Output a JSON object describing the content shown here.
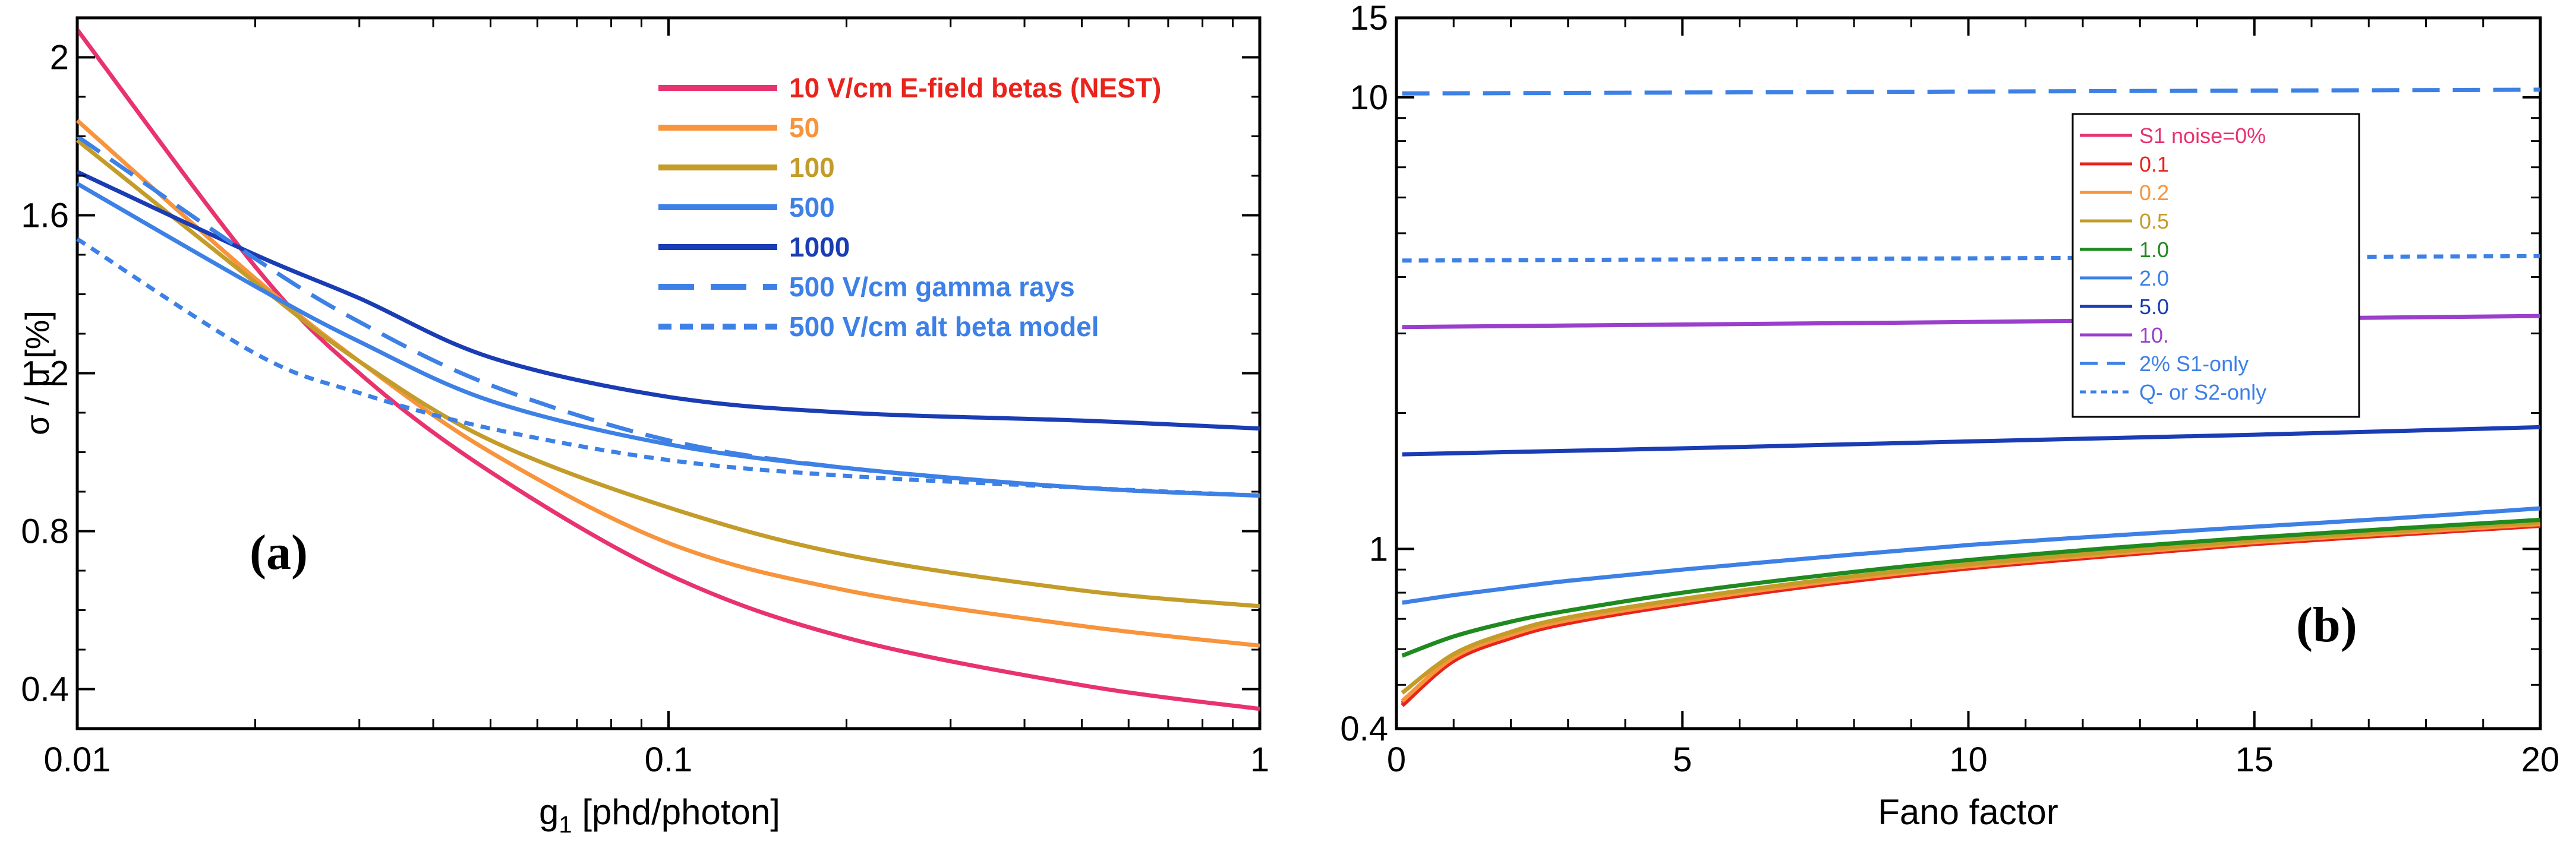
{
  "chart_data": [
    {
      "type": "line",
      "panel_label": "(a)",
      "xlabel_main": "g",
      "xlabel_sub": "1",
      "xlabel_rest": " [phd/photon]",
      "ylabel": "σ / μ [%]",
      "xscale": "log",
      "xlim": [
        0.01,
        1
      ],
      "ylim": [
        0.3,
        2.1
      ],
      "x_ticks": [
        {
          "value": 0.01,
          "label": "0.01"
        },
        {
          "value": 0.1,
          "label": "0.1"
        },
        {
          "value": 1,
          "label": "1"
        }
      ],
      "y_ticks": [
        {
          "value": 0.4,
          "label": "0.4"
        },
        {
          "value": 0.8,
          "label": "0.8"
        },
        {
          "value": 1.2,
          "label": "1.2"
        },
        {
          "value": 1.6,
          "label": "1.6"
        },
        {
          "value": 2.0,
          "label": "2"
        }
      ],
      "series": [
        {
          "name": "10 V/cm E-field betas (NEST)",
          "color": "#e8336e",
          "label_color": "#e8241c",
          "dash": "solid",
          "x": [
            0.01,
            0.02,
            0.03,
            0.05,
            0.1,
            0.2,
            0.5,
            1
          ],
          "y": [
            2.07,
            1.47,
            1.2,
            0.95,
            0.69,
            0.53,
            0.41,
            0.35
          ]
        },
        {
          "name": "50",
          "color": "#f7943c",
          "label_color": "#f7943c",
          "dash": "solid",
          "x": [
            0.01,
            0.02,
            0.03,
            0.05,
            0.1,
            0.2,
            0.5,
            1
          ],
          "y": [
            1.84,
            1.44,
            1.23,
            1.0,
            0.77,
            0.65,
            0.56,
            0.51
          ]
        },
        {
          "name": "100",
          "color": "#c39c2a",
          "label_color": "#c39c2a",
          "dash": "solid",
          "x": [
            0.01,
            0.02,
            0.03,
            0.05,
            0.1,
            0.2,
            0.5,
            1
          ],
          "y": [
            1.79,
            1.43,
            1.23,
            1.03,
            0.86,
            0.74,
            0.65,
            0.61
          ]
        },
        {
          "name": "500",
          "color": "#3d80e6",
          "label_color": "#3d80e6",
          "dash": "solid",
          "x": [
            0.01,
            0.02,
            0.03,
            0.05,
            0.1,
            0.2,
            0.5,
            1
          ],
          "y": [
            1.68,
            1.42,
            1.28,
            1.13,
            1.02,
            0.96,
            0.91,
            0.89
          ]
        },
        {
          "name": "1000",
          "color": "#1a3cb4",
          "label_color": "#1a3cb4",
          "dash": "solid",
          "x": [
            0.01,
            0.02,
            0.03,
            0.05,
            0.1,
            0.2,
            0.5,
            1
          ],
          "y": [
            1.71,
            1.5,
            1.39,
            1.24,
            1.14,
            1.1,
            1.08,
            1.06
          ]
        },
        {
          "name": "500 V/cm gamma rays",
          "color": "#3d80e6",
          "label_color": "#3d80e6",
          "dash": "long",
          "x": [
            0.01,
            0.02,
            0.03,
            0.05,
            0.1,
            0.2,
            0.5,
            1
          ],
          "y": [
            1.8,
            1.49,
            1.33,
            1.17,
            1.03,
            0.96,
            0.91,
            0.89
          ]
        },
        {
          "name": "500 V/cm alt beta model",
          "color": "#3d80e6",
          "label_color": "#3d80e6",
          "dash": "short",
          "x": [
            0.01,
            0.02,
            0.03,
            0.05,
            0.1,
            0.2,
            0.5,
            1
          ],
          "y": [
            1.54,
            1.25,
            1.15,
            1.06,
            0.98,
            0.94,
            0.91,
            0.89
          ]
        }
      ]
    },
    {
      "type": "line",
      "panel_label": "(b)",
      "xlabel": "Fano factor",
      "ylabel": "",
      "yscale": "log",
      "xlim": [
        0,
        20
      ],
      "ylim": [
        0.4,
        15
      ],
      "x_ticks": [
        {
          "value": 0,
          "label": "0"
        },
        {
          "value": 5,
          "label": "5"
        },
        {
          "value": 10,
          "label": "10"
        },
        {
          "value": 15,
          "label": "15"
        },
        {
          "value": 20,
          "label": "20"
        }
      ],
      "y_ticks": [
        {
          "value": 0.4,
          "label": "0.4"
        },
        {
          "value": 1,
          "label": "1"
        },
        {
          "value": 10,
          "label": "10"
        },
        {
          "value": 15,
          "label": "15"
        }
      ],
      "series": [
        {
          "name": "S1  noise=0%",
          "color": "#e8336e",
          "label_color": "#e8336e",
          "dash": "solid",
          "x": [
            0.1,
            1,
            2,
            3,
            5,
            7.5,
            10,
            12.5,
            15,
            17.5,
            20
          ],
          "y": [
            0.455,
            0.57,
            0.64,
            0.69,
            0.76,
            0.84,
            0.91,
            0.97,
            1.03,
            1.08,
            1.13
          ]
        },
        {
          "name": "0.1",
          "color": "#e8241c",
          "label_color": "#e8241c",
          "dash": "solid",
          "x": [
            0.1,
            1,
            2,
            3,
            5,
            7.5,
            10,
            12.5,
            15,
            17.5,
            20
          ],
          "y": [
            0.45,
            0.565,
            0.635,
            0.685,
            0.755,
            0.835,
            0.905,
            0.965,
            1.025,
            1.075,
            1.125
          ]
        },
        {
          "name": "0.2",
          "color": "#f7943c",
          "label_color": "#f7943c",
          "dash": "solid",
          "x": [
            0.1,
            1,
            2,
            3,
            5,
            7.5,
            10,
            12.5,
            15,
            17.5,
            20
          ],
          "y": [
            0.46,
            0.575,
            0.645,
            0.695,
            0.765,
            0.845,
            0.915,
            0.975,
            1.035,
            1.085,
            1.135
          ]
        },
        {
          "name": "0.5",
          "color": "#c39c2a",
          "label_color": "#c39c2a",
          "dash": "solid",
          "x": [
            0.1,
            1,
            2,
            3,
            5,
            7.5,
            10,
            12.5,
            15,
            17.5,
            20
          ],
          "y": [
            0.48,
            0.585,
            0.655,
            0.705,
            0.775,
            0.855,
            0.925,
            0.985,
            1.045,
            1.095,
            1.145
          ]
        },
        {
          "name": "1.0",
          "color": "#1f8a1f",
          "label_color": "#1f8a1f",
          "dash": "solid",
          "x": [
            0.1,
            1,
            2,
            3,
            5,
            7.5,
            10,
            12.5,
            15,
            17.5,
            20
          ],
          "y": [
            0.58,
            0.64,
            0.69,
            0.73,
            0.8,
            0.875,
            0.945,
            1.005,
            1.06,
            1.11,
            1.16
          ]
        },
        {
          "name": "2.0",
          "color": "#3d80e6",
          "label_color": "#3d80e6",
          "dash": "solid",
          "x": [
            0.1,
            1,
            2,
            3,
            5,
            7.5,
            10,
            12.5,
            15,
            17.5,
            20
          ],
          "y": [
            0.76,
            0.79,
            0.82,
            0.85,
            0.9,
            0.96,
            1.02,
            1.07,
            1.12,
            1.17,
            1.23
          ]
        },
        {
          "name": "5.0",
          "color": "#1a3cb4",
          "label_color": "#1a3cb4",
          "dash": "solid",
          "x": [
            0.1,
            5,
            10,
            15,
            20
          ],
          "y": [
            1.62,
            1.67,
            1.73,
            1.79,
            1.86
          ]
        },
        {
          "name": "10.",
          "color": "#9a3fcc",
          "label_color": "#9a3fcc",
          "dash": "solid",
          "x": [
            0.1,
            5,
            10,
            15,
            20
          ],
          "y": [
            3.1,
            3.14,
            3.18,
            3.23,
            3.28
          ]
        },
        {
          "name": "2% S1-only",
          "color": "#3d80e6",
          "label_color": "#3d80e6",
          "dash": "long",
          "x": [
            0.1,
            20
          ],
          "y": [
            10.2,
            10.4
          ]
        },
        {
          "name": "Q- or S2-only",
          "color": "#3d80e6",
          "label_color": "#3d80e6",
          "dash": "short",
          "x": [
            0.1,
            20
          ],
          "y": [
            4.35,
            4.45
          ]
        }
      ]
    }
  ]
}
